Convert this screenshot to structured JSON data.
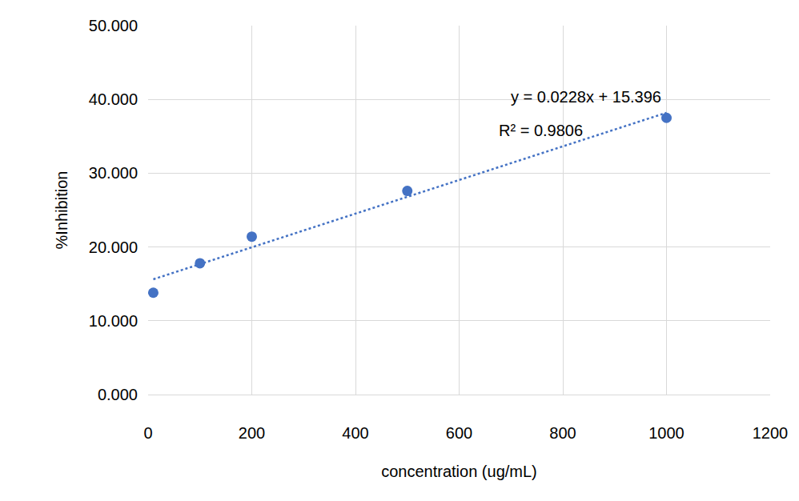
{
  "chart_data": {
    "type": "scatter",
    "x_label": "concentration (ug/mL)",
    "y_label": "%Inhibition",
    "x": [
      10,
      100,
      200,
      500,
      1000
    ],
    "values": [
      13.8,
      17.8,
      21.4,
      27.6,
      37.5
    ],
    "color": "#4472c4",
    "marker": "circle",
    "trendline": {
      "x": [
        10,
        1000
      ],
      "values": [
        15.624,
        38.196
      ],
      "color": "#4472c4",
      "line_style": "dotted"
    },
    "annotations": [
      {
        "text": "y = 0.0228x + 15.396",
        "x": 845,
        "y": 40.3
      },
      {
        "text": "R² = 0.9806",
        "x": 757,
        "y": 35.8
      }
    ],
    "xlim": [
      0,
      1200
    ],
    "xticks": [
      0,
      200,
      400,
      600,
      800,
      1000,
      1200
    ],
    "ylim": [
      0,
      50
    ],
    "yticks": [
      {
        "value": 0,
        "label": "0.000"
      },
      {
        "value": 10,
        "label": "10.000"
      },
      {
        "value": 20,
        "label": "20.000"
      },
      {
        "value": 30,
        "label": "30.000"
      },
      {
        "value": 40,
        "label": "40.000"
      },
      {
        "value": 50,
        "label": "50.000"
      }
    ],
    "grid": true
  }
}
